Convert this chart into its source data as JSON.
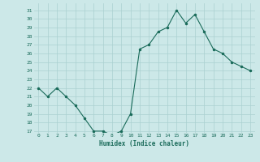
{
  "x": [
    0,
    1,
    2,
    3,
    4,
    5,
    6,
    7,
    8,
    9,
    10,
    11,
    12,
    13,
    14,
    15,
    16,
    17,
    18,
    19,
    20,
    21,
    22,
    23
  ],
  "y": [
    22,
    21,
    22,
    21,
    20,
    18.5,
    17,
    17,
    16.5,
    17,
    19,
    26.5,
    27,
    28.5,
    29,
    31,
    29.5,
    30.5,
    28.5,
    26.5,
    26,
    25,
    24.5,
    24
  ],
  "xlabel": "Humidex (Indice chaleur)",
  "yticks": [
    17,
    18,
    19,
    20,
    21,
    22,
    23,
    24,
    25,
    26,
    27,
    28,
    29,
    30,
    31
  ],
  "xticks": [
    0,
    1,
    2,
    3,
    4,
    5,
    6,
    7,
    8,
    9,
    10,
    11,
    12,
    13,
    14,
    15,
    16,
    17,
    18,
    19,
    20,
    21,
    22,
    23
  ],
  "line_color": "#1a6b5a",
  "marker_color": "#1a6b5a",
  "bg_color": "#cce8e8",
  "grid_color": "#aad0d0",
  "xlabel_color": "#1a6b5a",
  "tick_color": "#1a6b5a",
  "font": "monospace",
  "xlim": [
    -0.5,
    23.5
  ],
  "ylim": [
    16.8,
    31.8
  ],
  "figsize": [
    3.2,
    2.0
  ],
  "dpi": 100
}
